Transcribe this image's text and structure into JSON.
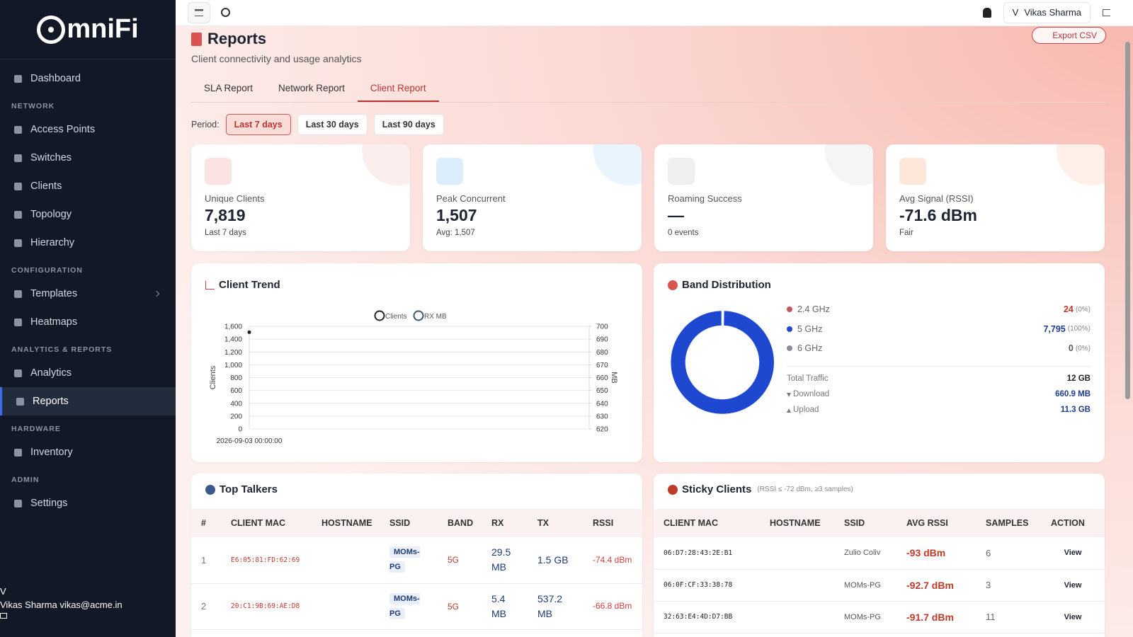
{
  "sidebar": {
    "brand": "mniFi",
    "groups": [
      {
        "items": [
          {
            "label": "Dashboard"
          }
        ]
      },
      {
        "label": "NETWORK",
        "items": [
          {
            "label": "Access Points"
          },
          {
            "label": "Switches"
          },
          {
            "label": "Clients"
          },
          {
            "label": "Topology"
          },
          {
            "label": "Hierarchy"
          }
        ]
      },
      {
        "label": "CONFIGURATION",
        "items": [
          {
            "label": "Templates"
          },
          {
            "label": "Heatmaps"
          }
        ]
      },
      {
        "label": "ANALYTICS & REPORTS",
        "items": [
          {
            "label": "Analytics"
          },
          {
            "label": "Reports",
            "active": true
          }
        ]
      },
      {
        "label": "HARDWARE",
        "items": [
          {
            "label": "Inventory"
          }
        ]
      },
      {
        "label": "ADMIN",
        "items": [
          {
            "label": "Settings"
          }
        ]
      }
    ],
    "user": {
      "initial": "V",
      "name": "Vikas Sharma",
      "email": "vikas@acme.in"
    }
  },
  "topbar": {
    "user_initial": "V",
    "user_name": "Vikas Sharma"
  },
  "header": {
    "title": "Reports",
    "subtitle": "Client connectivity and usage analytics",
    "export": "Export CSV"
  },
  "tabs": {
    "items": [
      "SLA Report",
      "Network Report",
      "Client Report"
    ],
    "active": 2
  },
  "period": {
    "label": "Period:",
    "options": [
      "Last 7 days",
      "Last 30 days",
      "Last 90 days"
    ],
    "active": 0
  },
  "kpis": [
    {
      "label": "Unique Clients",
      "value": "7,819",
      "sub": "Last 7 days",
      "color": "#fbe3e3"
    },
    {
      "label": "Peak Concurrent",
      "value": "1,507",
      "sub": "Avg: 1,507",
      "color": "#dcedfb"
    },
    {
      "label": "Roaming Success",
      "value": "—",
      "sub": "0 events",
      "color": "#efefef"
    },
    {
      "label": "Avg Signal (RSSI)",
      "value": "-71.6 dBm",
      "sub": "Fair",
      "color": "#fde6da"
    }
  ],
  "client_trend": {
    "title": "Client Trend",
    "chart": {
      "type": "line",
      "categories": [
        "2026-09-03 00:00:00"
      ],
      "series": [
        {
          "name": "Clients",
          "color": "#222222",
          "values": [
            1507
          ]
        },
        {
          "name": "RX MB",
          "color": "#3d5670",
          "axis": "y2",
          "values": [
            null
          ]
        }
      ],
      "ylabel": "Clients",
      "y2label": "MB",
      "ylim": [
        0,
        1600
      ],
      "yticks": [
        0,
        200,
        400,
        600,
        800,
        {
          "value": 1000,
          "label": "1,000"
        },
        {
          "value": 1200,
          "label": "1,200"
        },
        {
          "value": 1400,
          "label": "1,400"
        },
        {
          "value": 1600,
          "label": "1,600"
        }
      ],
      "y2lim": [
        620,
        700
      ],
      "y2ticks": [
        620,
        630,
        640,
        650,
        660,
        670,
        680,
        690,
        700
      ],
      "grid": true
    }
  },
  "band_distribution": {
    "title": "Band Distribution",
    "chart": {
      "type": "donut",
      "categories": [
        "2.4 GHz",
        "5 GHz",
        "6 GHz"
      ],
      "values": [
        24,
        7795,
        0
      ],
      "value_labels": [
        "24",
        "7,795",
        "0"
      ],
      "percents": [
        "(0%)",
        "(100%)",
        "(0%)"
      ],
      "colors": [
        "#c9545a",
        "#1e48d0",
        "#8a8f99"
      ]
    },
    "traffic": [
      {
        "label": "Total Traffic",
        "value": "12 GB"
      },
      {
        "label": "Download",
        "value": "660.9 MB"
      },
      {
        "label": "Upload",
        "value": "11.3 GB"
      }
    ]
  },
  "top_talkers": {
    "title": "Top Talkers",
    "columns": [
      "#",
      "CLIENT MAC",
      "HOSTNAME",
      "SSID",
      "BAND",
      "RX",
      "TX",
      "RSSI"
    ],
    "rows": [
      {
        "num": "1",
        "mac": "E6:05:81:FD:62:69",
        "ssid": "MOMs-PG",
        "band": "5G",
        "rx": "29.5 MB",
        "tx": "1.5 GB",
        "rssi": "-74.4 dBm"
      },
      {
        "num": "2",
        "mac": "20:C1:9B:69:AE:D8",
        "ssid": "MOMs-PG",
        "band": "5G",
        "rx": "5.4 MB",
        "tx": "537.2 MB",
        "rssi": "-66.8 dBm"
      }
    ]
  },
  "sticky_clients": {
    "title": "Sticky Clients",
    "note": "(RSSI ≤ -72 dBm, ≥3 samples)",
    "columns": [
      "CLIENT MAC",
      "HOSTNAME",
      "SSID",
      "AVG RSSI",
      "SAMPLES",
      "ACTION"
    ],
    "rows": [
      {
        "mac": "06:D7:28:43:2E:B1",
        "ssid": "Zulio Coliv",
        "rssi": "-93 dBm",
        "samples": "6",
        "action": "View"
      },
      {
        "mac": "06:0F:CF:33:38:78",
        "ssid": "MOMs-PG",
        "rssi": "-92.7 dBm",
        "samples": "3",
        "action": "View"
      },
      {
        "mac": "32:63:E4:4D:D7:BB",
        "ssid": "MOMs-PG",
        "rssi": "-91.7 dBm",
        "samples": "11",
        "action": "View"
      }
    ]
  }
}
